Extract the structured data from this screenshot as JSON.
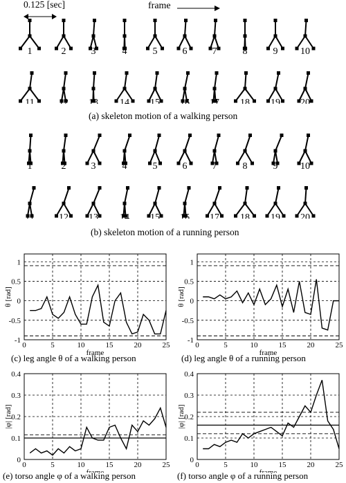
{
  "header": {
    "time_label": "0.125 [sec]",
    "frame_label": "frame"
  },
  "walking": {
    "caption": "(a) skeleton motion of a walking person",
    "labels": [
      "1",
      "2",
      "3",
      "4",
      "5",
      "6",
      "7",
      "8",
      "9",
      "10",
      "11",
      "12",
      "13",
      "14",
      "15",
      "16",
      "17",
      "18",
      "19",
      "20"
    ],
    "poses": [
      {
        "torso": 0.0,
        "legs": 0.45
      },
      {
        "torso": 0.0,
        "legs": 0.35
      },
      {
        "torso": 0.05,
        "legs": 0.15
      },
      {
        "torso": 0.0,
        "legs": 0.02
      },
      {
        "torso": 0.0,
        "legs": 0.35
      },
      {
        "torso": 0.05,
        "legs": 0.3
      },
      {
        "torso": 0.05,
        "legs": 0.2
      },
      {
        "torso": 0.0,
        "legs": 0.02
      },
      {
        "torso": 0.0,
        "legs": 0.35
      },
      {
        "torso": 0.05,
        "legs": 0.4
      },
      {
        "torso": 0.1,
        "legs": 0.45
      },
      {
        "torso": 0.1,
        "legs": 0.1
      },
      {
        "torso": 0.05,
        "legs": 0.02
      },
      {
        "torso": 0.1,
        "legs": 0.4
      },
      {
        "torso": 0.1,
        "legs": 0.3
      },
      {
        "torso": 0.15,
        "legs": 0.1
      },
      {
        "torso": 0.1,
        "legs": 0.05
      },
      {
        "torso": 0.05,
        "legs": 0.45
      },
      {
        "torso": 0.15,
        "legs": 0.35
      },
      {
        "torso": 0.15,
        "legs": 0.3
      }
    ]
  },
  "running": {
    "caption": "(b) skeleton motion of a running person",
    "labels": [
      "1",
      "2",
      "3",
      "4",
      "5",
      "6",
      "7",
      "8",
      "9",
      "10",
      "11",
      "12",
      "13",
      "14",
      "15",
      "16",
      "17",
      "18",
      "19",
      "20"
    ],
    "poses": [
      {
        "torso": 0.05,
        "legs": 0.05
      },
      {
        "torso": 0.1,
        "legs": 0.05
      },
      {
        "torso": 0.3,
        "legs": 0.3
      },
      {
        "torso": 0.25,
        "legs": 0.05
      },
      {
        "torso": 0.2,
        "legs": 0.25
      },
      {
        "torso": 0.25,
        "legs": 0.3
      },
      {
        "torso": 0.2,
        "legs": 0.1
      },
      {
        "torso": 0.25,
        "legs": 0.35
      },
      {
        "torso": 0.3,
        "legs": 0.1
      },
      {
        "torso": 0.15,
        "legs": 0.3
      },
      {
        "torso": 0.2,
        "legs": 0.1
      },
      {
        "torso": 0.25,
        "legs": 0.35
      },
      {
        "torso": 0.3,
        "legs": 0.3
      },
      {
        "torso": 0.15,
        "legs": 0.05
      },
      {
        "torso": 0.2,
        "legs": 0.3
      },
      {
        "torso": 0.2,
        "legs": 0.05
      },
      {
        "torso": 0.25,
        "legs": 0.35
      },
      {
        "torso": 0.1,
        "legs": 0.45
      },
      {
        "torso": 0.15,
        "legs": 0.4
      },
      {
        "torso": 0.05,
        "legs": 0.4
      }
    ]
  },
  "chart_data": [
    {
      "type": "line",
      "caption": "(c) leg angle θ of a walking person",
      "xlabel": "frame",
      "ylabel": "θ [rad]",
      "xlim": [
        0,
        25
      ],
      "ylim": [
        -1,
        1.2
      ],
      "xticks": [
        "0",
        "5",
        "10",
        "15",
        "20",
        "25"
      ],
      "yticks": [
        {
          "v": 1,
          "t": "1"
        },
        {
          "v": 0.5,
          "t": "0.5"
        },
        {
          "v": 0,
          "t": "0"
        },
        {
          "v": -0.5,
          "t": "-0.5"
        },
        {
          "v": -1,
          "t": "-1"
        }
      ],
      "hlines": [
        0.9,
        -0.9
      ],
      "x": [
        1,
        2,
        3,
        4,
        5,
        6,
        7,
        8,
        9,
        10,
        11,
        12,
        13,
        14,
        15,
        16,
        17,
        18,
        19,
        20,
        21,
        22,
        23,
        24,
        25
      ],
      "y": [
        -0.25,
        -0.25,
        -0.2,
        0.1,
        -0.35,
        -0.45,
        -0.3,
        0.1,
        -0.35,
        -0.6,
        -0.6,
        0.1,
        0.4,
        -0.55,
        -0.65,
        0.0,
        0.2,
        -0.55,
        -0.85,
        -0.8,
        -0.35,
        -0.5,
        -0.85,
        -0.85,
        -0.25
      ]
    },
    {
      "type": "line",
      "caption": "(d) leg angle θ of a running person",
      "xlabel": "frame",
      "ylabel": "θ [rad]",
      "xlim": [
        0,
        25
      ],
      "ylim": [
        -1,
        1.2
      ],
      "xticks": [
        "0",
        "5",
        "10",
        "15",
        "20",
        "25"
      ],
      "yticks": [
        {
          "v": 1,
          "t": "1"
        },
        {
          "v": 0.5,
          "t": "0.5"
        },
        {
          "v": 0,
          "t": "0"
        },
        {
          "v": -0.5,
          "t": "-0.5"
        },
        {
          "v": -1,
          "t": "-1"
        }
      ],
      "hlines": [
        0.9,
        -0.9
      ],
      "x": [
        1,
        2,
        3,
        4,
        5,
        6,
        7,
        8,
        9,
        10,
        11,
        12,
        13,
        14,
        15,
        16,
        17,
        18,
        19,
        20,
        21,
        22,
        23,
        24,
        25
      ],
      "y": [
        0.1,
        0.1,
        0.05,
        0.15,
        0.05,
        0.1,
        0.25,
        -0.05,
        0.2,
        -0.1,
        0.3,
        -0.1,
        0.05,
        0.4,
        -0.15,
        0.3,
        -0.3,
        0.5,
        -0.3,
        -0.35,
        0.55,
        -0.7,
        -0.75,
        0.0,
        0.0
      ]
    },
    {
      "type": "line",
      "caption": "(e) torso angle φ of a walking person",
      "xlabel": "frame",
      "ylabel": "|φ| [rad]",
      "xlim": [
        0,
        25
      ],
      "ylim": [
        0,
        0.4
      ],
      "xticks": [
        "0",
        "5",
        "10",
        "15",
        "20",
        "25"
      ],
      "yticks": [
        {
          "v": 0,
          "t": "0"
        },
        {
          "v": 0.1,
          "t": "0.1"
        },
        {
          "v": 0.2,
          "t": "0.2"
        },
        {
          "v": 0.3,
          "t": "0.3"
        },
        {
          "v": 0.4,
          "t": "0.4"
        }
      ],
      "hlines": [
        0.115
      ],
      "solid_hline": 0.1,
      "x": [
        1,
        2,
        3,
        4,
        5,
        6,
        7,
        8,
        9,
        10,
        11,
        12,
        13,
        14,
        15,
        16,
        17,
        18,
        19,
        20,
        21,
        22,
        23,
        24,
        25
      ],
      "y": [
        0.03,
        0.05,
        0.03,
        0.04,
        0.02,
        0.05,
        0.03,
        0.06,
        0.04,
        0.05,
        0.15,
        0.1,
        0.09,
        0.09,
        0.15,
        0.16,
        0.1,
        0.05,
        0.16,
        0.13,
        0.18,
        0.16,
        0.19,
        0.24,
        0.15
      ]
    },
    {
      "type": "line",
      "caption": "(f) torso angle φ of a running person",
      "xlabel": "frame",
      "ylabel": "|φ| [rad]",
      "xlim": [
        0,
        25
      ],
      "ylim": [
        0,
        0.4
      ],
      "xticks": [
        "0",
        "5",
        "10",
        "15",
        "20",
        "25"
      ],
      "yticks": [
        {
          "v": 0,
          "t": "0"
        },
        {
          "v": 0.1,
          "t": "0.1"
        },
        {
          "v": 0.2,
          "t": "0.2"
        },
        {
          "v": 0.3,
          "t": "0.3"
        },
        {
          "v": 0.4,
          "t": "0.4"
        }
      ],
      "hlines": [
        0.22,
        0.12
      ],
      "solid_hline": 0.16,
      "x": [
        1,
        2,
        3,
        4,
        5,
        6,
        7,
        8,
        9,
        10,
        11,
        12,
        13,
        14,
        15,
        16,
        17,
        18,
        19,
        20,
        21,
        22,
        23,
        24,
        25
      ],
      "y": [
        0.05,
        0.05,
        0.07,
        0.06,
        0.08,
        0.09,
        0.08,
        0.12,
        0.1,
        0.12,
        0.13,
        0.14,
        0.15,
        0.13,
        0.11,
        0.17,
        0.15,
        0.2,
        0.25,
        0.22,
        0.3,
        0.37,
        0.18,
        0.14,
        0.05
      ]
    }
  ]
}
